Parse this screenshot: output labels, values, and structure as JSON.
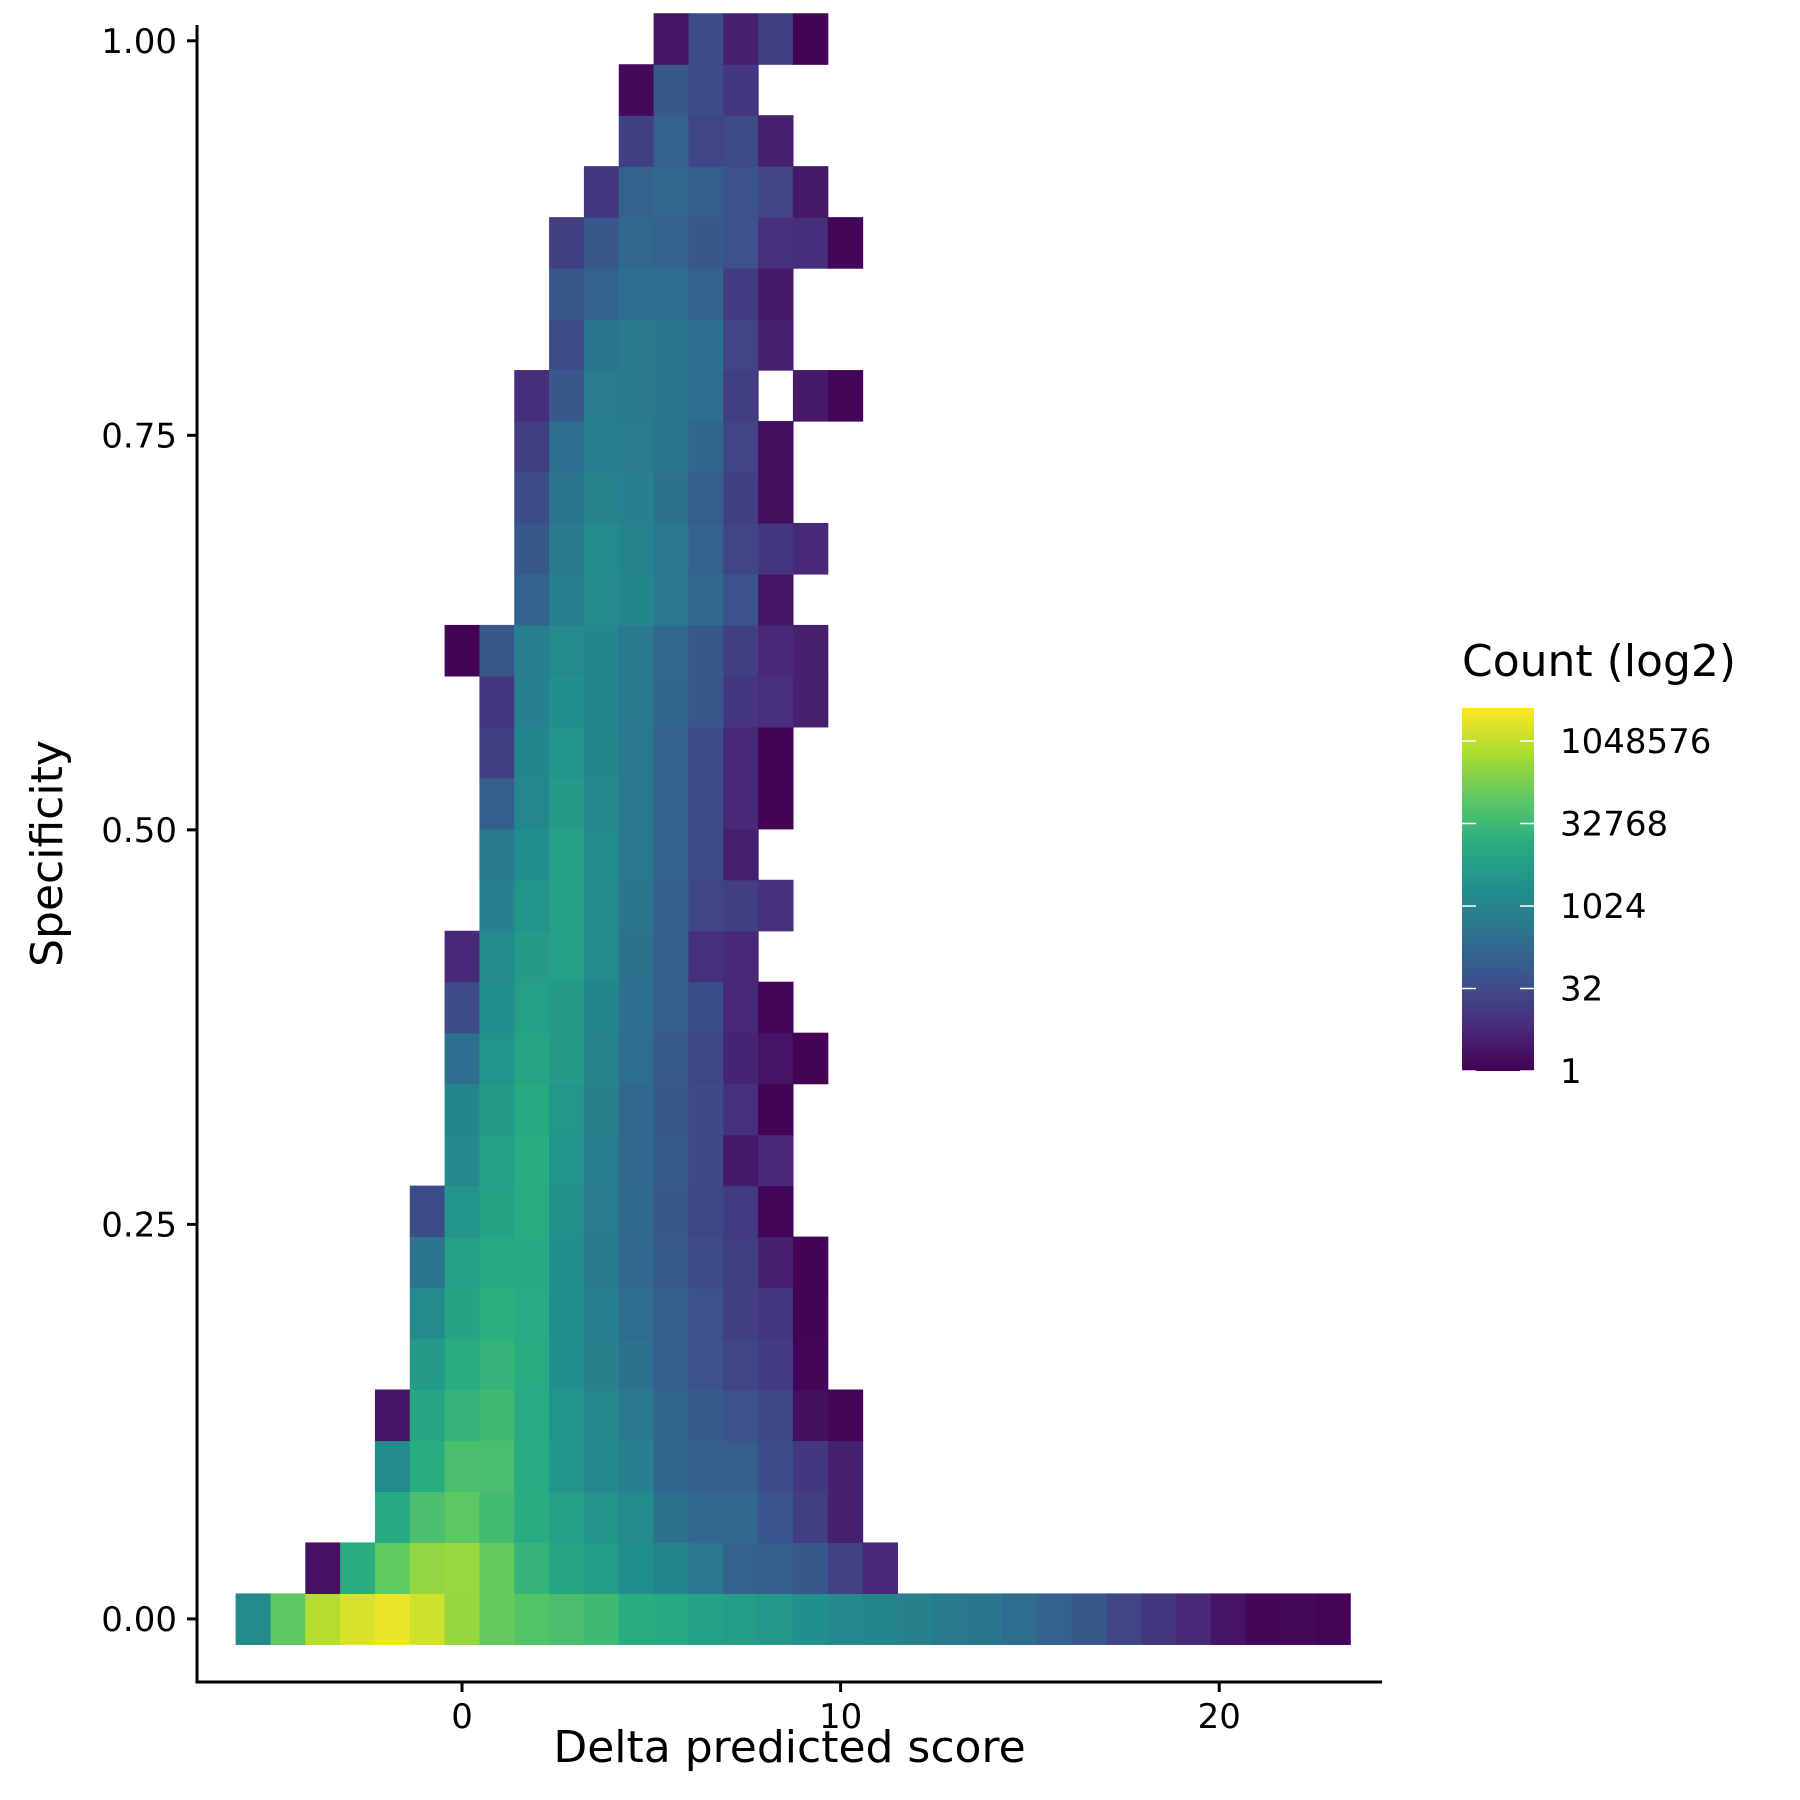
{
  "chart_data": {
    "type": "heatmap",
    "xlabel": "Delta predicted score",
    "ylabel": "Specificity",
    "x_ticks": [
      0,
      10,
      20
    ],
    "y_ticks": [
      "0.00",
      "0.25",
      "0.50",
      "0.75",
      "1.00"
    ],
    "y_tick_values": [
      0,
      0.25,
      0.5,
      0.75,
      1.0
    ],
    "xlim": [
      -7,
      24.3
    ],
    "ylim": [
      -0.04,
      1.01
    ],
    "bin_width_x": 0.92,
    "bin_height_y": 0.0323,
    "color_scale": {
      "title": "Count (log2)",
      "transform": "log2",
      "palette": "viridis",
      "colors": [
        "#440154",
        "#472D7B",
        "#3B528B",
        "#2C728E",
        "#21908C",
        "#27AD81",
        "#5DC863",
        "#AADC32",
        "#FDE725"
      ],
      "min_log2": 0,
      "max_log2": 22,
      "breaks": [
        1,
        32,
        1024,
        32768,
        1048576
      ],
      "break_labels": [
        "1",
        "32",
        "1024",
        "32768",
        "1048576"
      ]
    },
    "legend_position": "right",
    "grid": false,
    "rows": [
      {
        "y": 0.0,
        "x0": -5.52,
        "log2": [
          10.5,
          16.5,
          19.6,
          20.8,
          21.4,
          20.5,
          18.5,
          16.8,
          16.0,
          15.6,
          15.0,
          13.8,
          13.5,
          12.6,
          12.2,
          11.8,
          11.0,
          10.3,
          10.0,
          9.6,
          9.0,
          8.6,
          7.8,
          7.0,
          6.0,
          4.5,
          3.6,
          2.5,
          1.2,
          0.3,
          0.5,
          0.2
        ]
      },
      {
        "y": 0.0323,
        "x0": -3.68,
        "log2": [
          1.0,
          13.8,
          16.6,
          18.4,
          18.6,
          16.8,
          14.5,
          13.0,
          12.2,
          10.8,
          10.0,
          8.7,
          7.0,
          6.5,
          6.0,
          4.2,
          2.5
        ]
      },
      {
        "y": 0.0646,
        "x0": -1.84,
        "log2": [
          13.5,
          15.6,
          16.5,
          15.2,
          13.8,
          12.5,
          11.4,
          10.5,
          8.2,
          7.5,
          7.5,
          5.8,
          4.0,
          2.0
        ]
      },
      {
        "y": 0.0969,
        "x0": -1.84,
        "log2": [
          10.5,
          13.8,
          15.6,
          15.5,
          13.6,
          11.6,
          10.4,
          9.5,
          7.2,
          6.6,
          6.5,
          5.0,
          3.6,
          2.0
        ]
      },
      {
        "y": 0.1292,
        "x0": -1.84,
        "log2": [
          1.2,
          13.0,
          14.5,
          15.0,
          13.6,
          11.5,
          10.2,
          8.8,
          7.2,
          6.4,
          5.5,
          4.6,
          0.8,
          0.3
        ]
      },
      {
        "y": 0.1615,
        "x0": -0.92,
        "log2": [
          12.0,
          13.8,
          14.5,
          13.7,
          11.0,
          9.6,
          8.2,
          6.8,
          5.5,
          4.5,
          3.8,
          0.2
        ]
      },
      {
        "y": 0.1938,
        "x0": -0.92,
        "log2": [
          10.5,
          12.8,
          14.0,
          13.6,
          10.8,
          9.4,
          7.8,
          6.5,
          5.5,
          4.0,
          3.6,
          0.1
        ]
      },
      {
        "y": 0.2261,
        "x0": -0.92,
        "log2": [
          8.5,
          12.5,
          13.5,
          13.5,
          10.8,
          9.0,
          7.5,
          6.2,
          5.0,
          4.0,
          2.0,
          0.1
        ]
      },
      {
        "y": 0.2584,
        "x0": -0.92,
        "log2": [
          5.0,
          11.6,
          12.8,
          13.8,
          11.2,
          9.2,
          7.6,
          6.0,
          4.6,
          3.8,
          0.2
        ]
      },
      {
        "y": 0.2907,
        "x0": 0.0,
        "log2": [
          10.3,
          12.5,
          13.8,
          11.5,
          9.4,
          7.5,
          6.2,
          4.8,
          1.5,
          2.5
        ]
      },
      {
        "y": 0.323,
        "x0": 0.0,
        "log2": [
          10.0,
          12.0,
          13.5,
          11.8,
          9.6,
          7.5,
          6.0,
          4.8,
          3.0,
          0.1
        ]
      },
      {
        "y": 0.3553,
        "x0": 0.0,
        "log2": [
          8.0,
          11.5,
          13.0,
          12.0,
          9.8,
          7.8,
          6.2,
          4.6,
          2.2,
          1.2,
          0.1
        ]
      },
      {
        "y": 0.3876,
        "x0": 0.0,
        "log2": [
          5.0,
          11.0,
          12.5,
          12.0,
          10.0,
          8.0,
          6.5,
          5.2,
          2.5,
          0.2
        ]
      },
      {
        "y": 0.4199,
        "x0": 0.0,
        "log2": [
          2.5,
          10.5,
          12.0,
          12.5,
          10.5,
          8.2,
          6.5,
          3.0,
          2.5
        ]
      },
      {
        "y": 0.4522,
        "x0": 0.92,
        "log2": [
          9.5,
          11.5,
          12.5,
          10.5,
          8.5,
          6.8,
          4.5,
          4.0,
          3.0
        ]
      },
      {
        "y": 0.4845,
        "x0": 0.92,
        "log2": [
          9.0,
          10.8,
          12.5,
          10.5,
          8.8,
          7.0,
          5.0,
          1.8
        ]
      },
      {
        "y": 0.5168,
        "x0": 0.92,
        "log2": [
          6.5,
          10.2,
          12.0,
          10.2,
          8.8,
          7.0,
          5.0,
          2.5,
          0.1
        ]
      },
      {
        "y": 0.5491,
        "x0": 0.92,
        "log2": [
          4.0,
          10.0,
          11.5,
          10.0,
          8.8,
          7.0,
          5.0,
          2.5,
          0.1
        ]
      },
      {
        "y": 0.5814,
        "x0": 0.92,
        "log2": [
          3.5,
          9.5,
          11.0,
          10.0,
          9.0,
          7.2,
          6.0,
          3.5,
          3.0,
          2.0
        ]
      },
      {
        "y": 0.6137,
        "x0": 0.0,
        "log2": [
          0.1,
          6.0,
          9.5,
          10.5,
          10.0,
          9.0,
          7.5,
          6.0,
          4.0,
          2.5,
          2.0
        ]
      },
      {
        "y": 0.646,
        "x0": 1.84,
        "log2": [
          7.0,
          9.5,
          10.5,
          10.0,
          8.8,
          7.5,
          5.5,
          1.2
        ]
      },
      {
        "y": 0.6783,
        "x0": 1.84,
        "log2": [
          6.0,
          9.0,
          10.5,
          9.8,
          8.8,
          7.0,
          4.5,
          3.5,
          2.5
        ]
      },
      {
        "y": 0.7106,
        "x0": 1.84,
        "log2": [
          5.0,
          8.5,
          9.8,
          9.5,
          8.2,
          6.5,
          4.0,
          0.8
        ]
      },
      {
        "y": 0.7429,
        "x0": 1.84,
        "log2": [
          4.0,
          7.8,
          9.5,
          9.2,
          8.5,
          7.2,
          4.5,
          0.8
        ]
      },
      {
        "y": 0.7752,
        "x0": 1.84,
        "log2": [
          2.8,
          6.0,
          9.2,
          9.0,
          8.6,
          7.8,
          4.0,
          null,
          1.5,
          0.3
        ]
      },
      {
        "y": 0.8075,
        "x0": 2.76,
        "log2": [
          5.0,
          8.5,
          9.0,
          8.6,
          8.0,
          4.5,
          2.0
        ]
      },
      {
        "y": 0.8398,
        "x0": 2.76,
        "log2": [
          6.0,
          7.0,
          8.0,
          8.0,
          7.0,
          3.8,
          1.5
        ]
      },
      {
        "y": 0.8721,
        "x0": 2.76,
        "log2": [
          4.0,
          6.0,
          7.5,
          7.0,
          6.0,
          5.5,
          3.0,
          2.8,
          0.3
        ]
      },
      {
        "y": 0.9044,
        "x0": 3.68,
        "log2": [
          3.5,
          7.0,
          7.5,
          6.5,
          5.5,
          4.5,
          1.5
        ]
      },
      {
        "y": 0.9367,
        "x0": 4.6,
        "log2": [
          4.0,
          7.0,
          4.5,
          5.0,
          2.0
        ]
      },
      {
        "y": 0.969,
        "x0": 4.6,
        "log2": [
          0.5,
          6.0,
          5.0,
          3.5
        ]
      },
      {
        "y": 1.0013,
        "x0": 5.52,
        "log2": [
          1.2,
          5.0,
          2.0,
          4.0,
          0.1
        ]
      }
    ]
  }
}
